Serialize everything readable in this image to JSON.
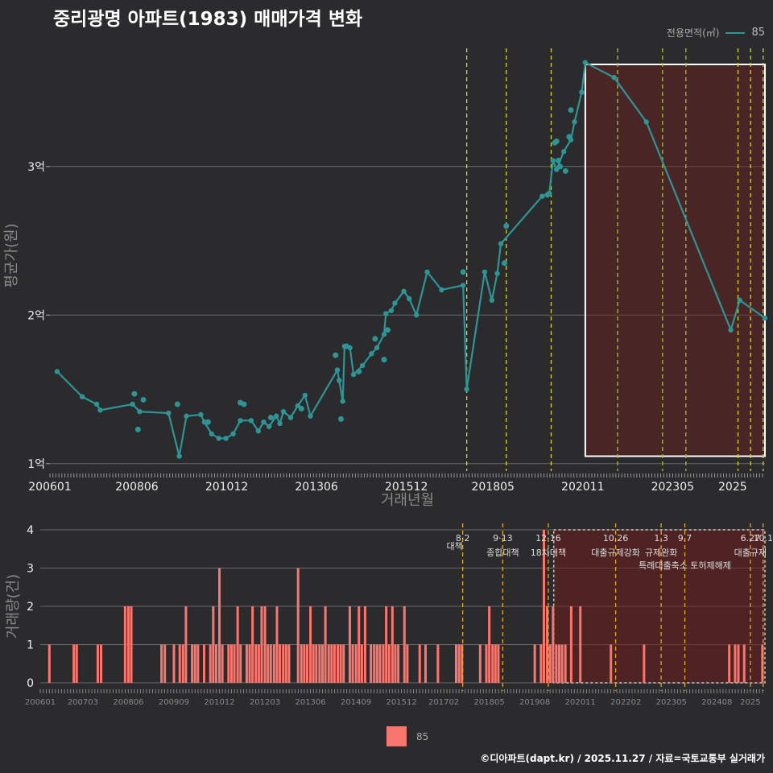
{
  "title": "중리광명 아파트(1983) 매매가격 변화",
  "legend_top": {
    "title": "전용면적(㎡)",
    "item": "85",
    "color": "#2e9596"
  },
  "legend_bottom": {
    "item": "85",
    "color": "#f8766d"
  },
  "caption": "©디아파트(dapt.kr) / 2025.11.27 / 자료=국토교통부 실거래가",
  "chart_data": [
    {
      "type": "line",
      "title": "중리광명 아파트(1983) 매매가격 변화",
      "xlabel": "거래년월",
      "ylabel": "평균가(원)",
      "x_range": [
        2006.0,
        2025.9
      ],
      "ylim": [
        0.95,
        3.85
      ],
      "y_ticks": [
        {
          "v": 1,
          "label": "1억"
        },
        {
          "v": 2,
          "label": "2억"
        },
        {
          "v": 3,
          "label": "3억"
        }
      ],
      "x_ticks": [
        {
          "v": 2006.0,
          "label": "200601"
        },
        {
          "v": 2008.42,
          "label": "200806"
        },
        {
          "v": 2010.92,
          "label": "201012"
        },
        {
          "v": 2013.42,
          "label": "201306"
        },
        {
          "v": 2015.92,
          "label": "201512"
        },
        {
          "v": 2018.33,
          "label": "201805"
        },
        {
          "v": 2020.83,
          "label": "202011"
        },
        {
          "v": 2023.33,
          "label": "202305"
        },
        {
          "v": 2025.0,
          "label": "2025"
        }
      ],
      "highlight_range": [
        2020.9,
        2025.9
      ],
      "policy_lines": [
        {
          "x": 2017.6,
          "color": "#d4d42a"
        },
        {
          "x": 2018.7,
          "color": "#d4d42a"
        },
        {
          "x": 2019.95,
          "color": "#d4d42a"
        },
        {
          "x": 2021.8,
          "color": "#a6c23a"
        },
        {
          "x": 2023.05,
          "color": "#a6c23a"
        },
        {
          "x": 2023.7,
          "color": "#a6c23a"
        },
        {
          "x": 2025.15,
          "color": "#d4d42a"
        },
        {
          "x": 2025.5,
          "color": "#d4d42a"
        },
        {
          "x": 2025.85,
          "color": "#d4d42a"
        }
      ],
      "series": [
        {
          "name": "85",
          "color": "#2e9596",
          "x": [
            2006.2,
            2006.9,
            2007.3,
            2007.4,
            2008.3,
            2008.5,
            2009.3,
            2009.6,
            2009.8,
            2010.2,
            2010.3,
            2010.5,
            2010.7,
            2010.9,
            2011.1,
            2011.3,
            2011.6,
            2011.8,
            2011.95,
            2012.1,
            2012.3,
            2012.4,
            2012.5,
            2012.7,
            2012.9,
            2013.1,
            2013.25,
            2014.0,
            2014.05,
            2014.15,
            2014.2,
            2014.35,
            2014.45,
            2014.7,
            2014.95,
            2015.1,
            2015.3,
            2015.35,
            2015.5,
            2015.6,
            2015.85,
            2016.0,
            2016.2,
            2016.5,
            2016.9,
            2017.5,
            2017.6,
            2018.1,
            2018.3,
            2018.45,
            2018.55,
            2019.7,
            2019.9,
            2020.0,
            2020.1,
            2020.3,
            2020.5,
            2020.6,
            2020.8,
            2020.9,
            2021.7,
            2022.6,
            2024.95,
            2025.2,
            2025.9
          ],
          "y": [
            1.62,
            1.45,
            1.4,
            1.36,
            1.4,
            1.35,
            1.34,
            1.05,
            1.32,
            1.33,
            1.28,
            1.2,
            1.17,
            1.17,
            1.2,
            1.29,
            1.29,
            1.22,
            1.28,
            1.25,
            1.32,
            1.27,
            1.35,
            1.31,
            1.39,
            1.46,
            1.32,
            1.63,
            1.56,
            1.42,
            1.79,
            1.78,
            1.6,
            1.66,
            1.74,
            1.78,
            1.87,
            2.01,
            2.03,
            2.08,
            2.16,
            2.11,
            2.0,
            2.29,
            2.17,
            2.2,
            1.5,
            2.29,
            2.1,
            2.28,
            2.48,
            2.8,
            2.82,
            3.04,
            2.98,
            3.1,
            3.18,
            3.3,
            3.5,
            3.7,
            3.6,
            3.3,
            1.9,
            2.1,
            1.98
          ]
        },
        {
          "name": "85 (scatter)",
          "color": "#2e9596",
          "x": [
            2008.35,
            2008.45,
            2008.6,
            2009.55,
            2010.4,
            2011.3,
            2011.4,
            2012.15,
            2013.0,
            2013.95,
            2014.1,
            2014.25,
            2014.6,
            2015.05,
            2015.3,
            2015.4,
            2017.5,
            2018.65,
            2018.7,
            2019.85,
            2020.05,
            2020.1,
            2020.15,
            2020.2,
            2020.35,
            2020.45,
            2020.5
          ],
          "y": [
            1.47,
            1.23,
            1.43,
            1.4,
            1.28,
            1.41,
            1.4,
            1.31,
            1.37,
            1.73,
            1.3,
            1.79,
            1.62,
            1.84,
            1.7,
            1.9,
            2.29,
            2.35,
            2.6,
            2.81,
            3.16,
            3.17,
            3.04,
            3.0,
            2.97,
            3.2,
            3.38
          ]
        }
      ]
    },
    {
      "type": "bar",
      "ylabel": "거래량(건)",
      "x_range": [
        2006.0,
        2025.9
      ],
      "ylim": [
        0,
        4
      ],
      "y_ticks": [
        0,
        1,
        2,
        3,
        4
      ],
      "x_ticks": [
        {
          "v": 2006.0,
          "label": "200601"
        },
        {
          "v": 2007.17,
          "label": "200703"
        },
        {
          "v": 2008.42,
          "label": "200806"
        },
        {
          "v": 2009.67,
          "label": "200909"
        },
        {
          "v": 2010.92,
          "label": "201012"
        },
        {
          "v": 2012.17,
          "label": "201203"
        },
        {
          "v": 2013.42,
          "label": "201306"
        },
        {
          "v": 2014.67,
          "label": "201409"
        },
        {
          "v": 2015.92,
          "label": "201512"
        },
        {
          "v": 2017.08,
          "label": "201702"
        },
        {
          "v": 2018.33,
          "label": "201805"
        },
        {
          "v": 2019.58,
          "label": "201908"
        },
        {
          "v": 2020.83,
          "label": "202011"
        },
        {
          "v": 2022.08,
          "label": "202202"
        },
        {
          "v": 2023.33,
          "label": "202305"
        },
        {
          "v": 2024.58,
          "label": "202408"
        },
        {
          "v": 2025.5,
          "label": "2025"
        }
      ],
      "highlight_range": [
        2020.1,
        2025.9
      ],
      "policies": [
        {
          "x": 2017.6,
          "date": "8·2",
          "name": "대책"
        },
        {
          "x": 2018.7,
          "date": "9·13",
          "name": "종합대책"
        },
        {
          "x": 2019.95,
          "date": "12·16",
          "name": "18차대책"
        },
        {
          "x": 2021.8,
          "date": "10.26",
          "name": "대출규제강화"
        },
        {
          "x": 2023.05,
          "date": "1.3",
          "name": "규제완화"
        },
        {
          "x": 2023.7,
          "date": "9.7",
          "name": "특례대출축소 토허제해제"
        },
        {
          "x": 2025.5,
          "date": "6.27",
          "name": "대출규제"
        },
        {
          "x": 2025.85,
          "date": "10.1",
          "name": ""
        }
      ],
      "bars": {
        "x": [
          2006.25,
          2006.92,
          2007.0,
          2007.58,
          2007.67,
          2008.33,
          2008.42,
          2008.5,
          2009.33,
          2009.42,
          2009.67,
          2009.83,
          2009.92,
          2010.0,
          2010.17,
          2010.25,
          2010.33,
          2010.5,
          2010.67,
          2010.75,
          2010.83,
          2010.92,
          2011.0,
          2011.17,
          2011.25,
          2011.33,
          2011.42,
          2011.5,
          2011.67,
          2011.75,
          2011.83,
          2011.92,
          2012.0,
          2012.08,
          2012.17,
          2012.25,
          2012.33,
          2012.42,
          2012.5,
          2012.58,
          2012.67,
          2012.75,
          2012.83,
          2013.08,
          2013.17,
          2013.25,
          2013.33,
          2013.42,
          2013.5,
          2013.58,
          2013.67,
          2013.75,
          2013.83,
          2013.92,
          2014.0,
          2014.08,
          2014.17,
          2014.25,
          2014.33,
          2014.5,
          2014.58,
          2014.67,
          2014.75,
          2014.83,
          2014.92,
          2015.08,
          2015.17,
          2015.25,
          2015.33,
          2015.42,
          2015.5,
          2015.58,
          2015.67,
          2015.75,
          2015.83,
          2016.0,
          2016.08,
          2016.42,
          2016.58,
          2016.92,
          2017.42,
          2017.5,
          2017.58,
          2018.08,
          2018.25,
          2018.33,
          2018.42,
          2018.5,
          2018.58,
          2019.58,
          2019.75,
          2019.83,
          2019.92,
          2020.0,
          2020.08,
          2020.17,
          2020.25,
          2020.33,
          2020.42,
          2020.58,
          2020.83,
          2021.67,
          2022.58,
          2024.92,
          2025.08,
          2025.17,
          2025.33,
          2025.83
        ],
        "v": [
          1,
          1,
          1,
          1,
          1,
          2,
          2,
          2,
          1,
          1,
          1,
          1,
          1,
          2,
          1,
          1,
          1,
          1,
          1,
          2,
          1,
          3,
          1,
          1,
          1,
          1,
          2,
          1,
          1,
          1,
          2,
          1,
          1,
          2,
          2,
          1,
          1,
          1,
          2,
          1,
          1,
          1,
          1,
          3,
          1,
          1,
          1,
          2,
          1,
          1,
          1,
          1,
          2,
          1,
          1,
          1,
          1,
          1,
          1,
          2,
          1,
          1,
          2,
          1,
          2,
          1,
          1,
          1,
          1,
          1,
          2,
          1,
          2,
          1,
          1,
          2,
          1,
          1,
          1,
          1,
          1,
          1,
          1,
          1,
          1,
          2,
          1,
          1,
          1,
          1,
          1,
          4,
          2,
          1,
          2,
          1,
          1,
          1,
          1,
          2,
          2,
          1,
          1,
          1,
          1,
          1,
          1,
          1,
          1
        ]
      }
    }
  ]
}
